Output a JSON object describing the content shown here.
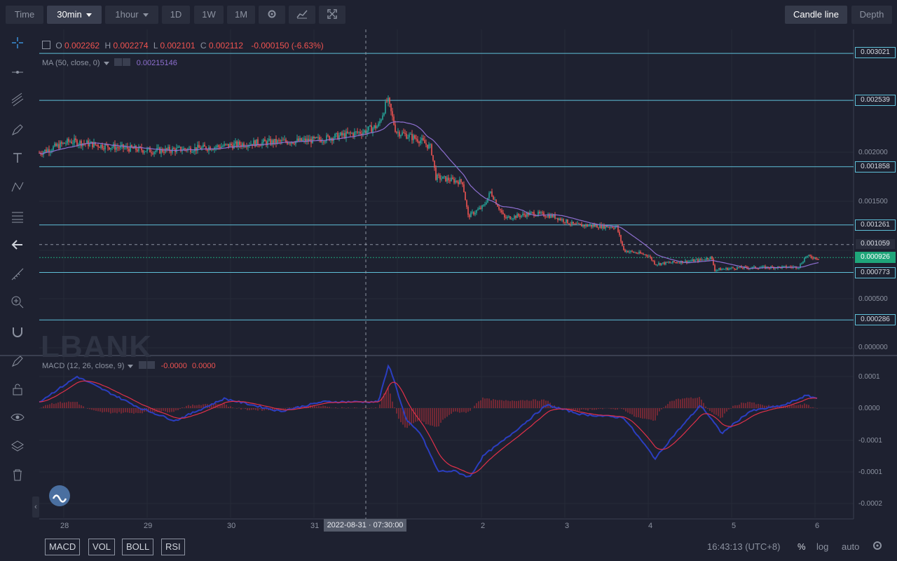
{
  "toolbar": {
    "time": "Time",
    "interval_30": "30min",
    "interval_1h": "1hour",
    "d1": "1D",
    "w1": "1W",
    "m1": "1M",
    "candle_line": "Candle line",
    "depth": "Depth"
  },
  "legend": {
    "o_label": "O",
    "o": "0.002262",
    "h_label": "H",
    "h": "0.002274",
    "l_label": "L",
    "l": "0.002101",
    "c_label": "C",
    "c": "0.002112",
    "change": "-0.000150 (-6.63%)",
    "ma_label": "MA (50, close, 0)",
    "ma_value": "0.00215146",
    "macd_label": "MACD (12, 26, close, 9)",
    "macd_v1": "-0.0000",
    "macd_v2": "0.0000"
  },
  "watermark": "LBANK",
  "price_tags": [
    "0.003021",
    "0.002539",
    "0.001858",
    "0.001261",
    "0.001059",
    "0.000926",
    "0.000773",
    "0.000286"
  ],
  "price_axis": [
    "0.002000",
    "0.001500",
    "0.000500",
    "0.000000"
  ],
  "macd_axis": [
    "0.0001",
    "0.0000",
    "-0.0001",
    "-0.0001",
    "-0.0002"
  ],
  "x_ticks": [
    "28",
    "29",
    "30",
    "31",
    "2",
    "3",
    "4",
    "5",
    "6"
  ],
  "crosshair_label": "2022-08-31 · 07:30:00",
  "indicators": [
    "MACD",
    "VOL",
    "BOLL",
    "RSI"
  ],
  "status": {
    "clock": "16:43:13 (UTC+8)",
    "percent": "%",
    "log": "log",
    "auto": "auto"
  },
  "colors": {
    "up": "#26a69a",
    "down": "#ef5350",
    "ma": "#8e6fd0",
    "level": "#5fc0d8",
    "current": "#1fa67a",
    "macd_line": "#2b3ec0",
    "signal_line": "#e0304a"
  },
  "chart_data": {
    "type": "line",
    "price_series": [
      {
        "x": "28",
        "y": 0.00208
      },
      {
        "x": "29",
        "y": 0.00204
      },
      {
        "x": "30",
        "y": 0.00209
      },
      {
        "x": "31",
        "y": 0.00218
      },
      {
        "x": "1",
        "y": 0.00245
      },
      {
        "x": "1.5",
        "y": 0.00175
      },
      {
        "x": "2",
        "y": 0.00128
      },
      {
        "x": "3",
        "y": 0.00126
      },
      {
        "x": "4",
        "y": 0.00086
      },
      {
        "x": "5",
        "y": 0.00085
      },
      {
        "x": "6",
        "y": 0.00093
      }
    ],
    "levels": [
      0.003021,
      0.002539,
      0.001858,
      0.001261,
      0.000773,
      0.000286
    ],
    "last": 0.000926,
    "dashed": 0.001059
  }
}
